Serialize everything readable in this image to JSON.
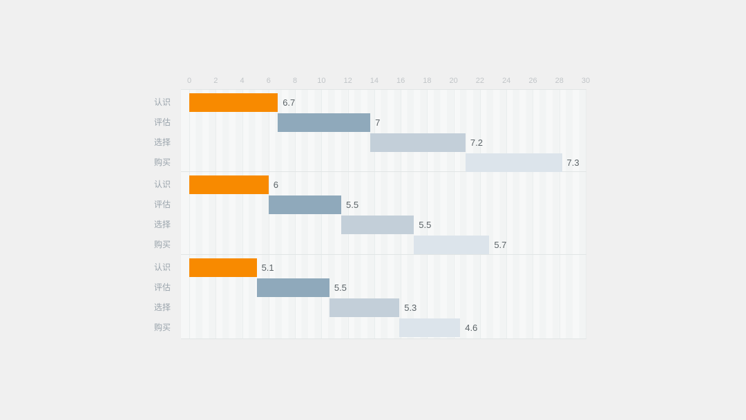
{
  "background_color": "#F0F0F0",
  "chart_data": {
    "type": "bar",
    "subtype": "horizontal-cascade-waterfall",
    "title": "",
    "axis_position": "top",
    "xlim": [
      0,
      30
    ],
    "tick_step": 2,
    "tick_labels": [
      "0",
      "2",
      "4",
      "6",
      "8",
      "10",
      "12",
      "14",
      "16",
      "18",
      "20",
      "22",
      "24",
      "26",
      "28",
      "30"
    ],
    "categories": [
      "认识",
      "评估",
      "选择",
      "购买"
    ],
    "category_keys": [
      "awareness",
      "evaluation",
      "selection",
      "purchase"
    ],
    "series_colors": [
      "#F88A00",
      "#8FA9BB",
      "#C3CFD9",
      "#DCE4EB"
    ],
    "grid": true,
    "legend": "none",
    "groups": [
      {
        "name": "group-1",
        "segments": [
          {
            "category": "认识",
            "start": 0,
            "value": 6.7,
            "label": "6.7"
          },
          {
            "category": "评估",
            "start": 6.7,
            "value": 7,
            "label": "7"
          },
          {
            "category": "选择",
            "start": 13.7,
            "value": 7.2,
            "label": "7.2"
          },
          {
            "category": "购买",
            "start": 20.9,
            "value": 7.3,
            "label": "7.3"
          }
        ]
      },
      {
        "name": "group-2",
        "segments": [
          {
            "category": "认识",
            "start": 0,
            "value": 6,
            "label": "6"
          },
          {
            "category": "评估",
            "start": 6,
            "value": 5.5,
            "label": "5.5"
          },
          {
            "category": "选择",
            "start": 11.5,
            "value": 5.5,
            "label": "5.5"
          },
          {
            "category": "购买",
            "start": 17,
            "value": 5.7,
            "label": "5.7"
          }
        ]
      },
      {
        "name": "group-3",
        "segments": [
          {
            "category": "认识",
            "start": 0,
            "value": 5.1,
            "label": "5.1"
          },
          {
            "category": "评估",
            "start": 5.1,
            "value": 5.5,
            "label": "5.5"
          },
          {
            "category": "选择",
            "start": 10.6,
            "value": 5.3,
            "label": "5.3"
          },
          {
            "category": "购买",
            "start": 15.9,
            "value": 4.6,
            "label": "4.6"
          }
        ]
      }
    ],
    "colors": {
      "axis_label": "#C1C5C8",
      "category_label": "#9AA4AC",
      "value_label": "#5B6367",
      "grid_line": "#E9EDED",
      "separator_line": "#E1E5E5",
      "plot_bg": "#F6F7F7",
      "plot_bg_stripe": "#F2F4F4"
    }
  }
}
